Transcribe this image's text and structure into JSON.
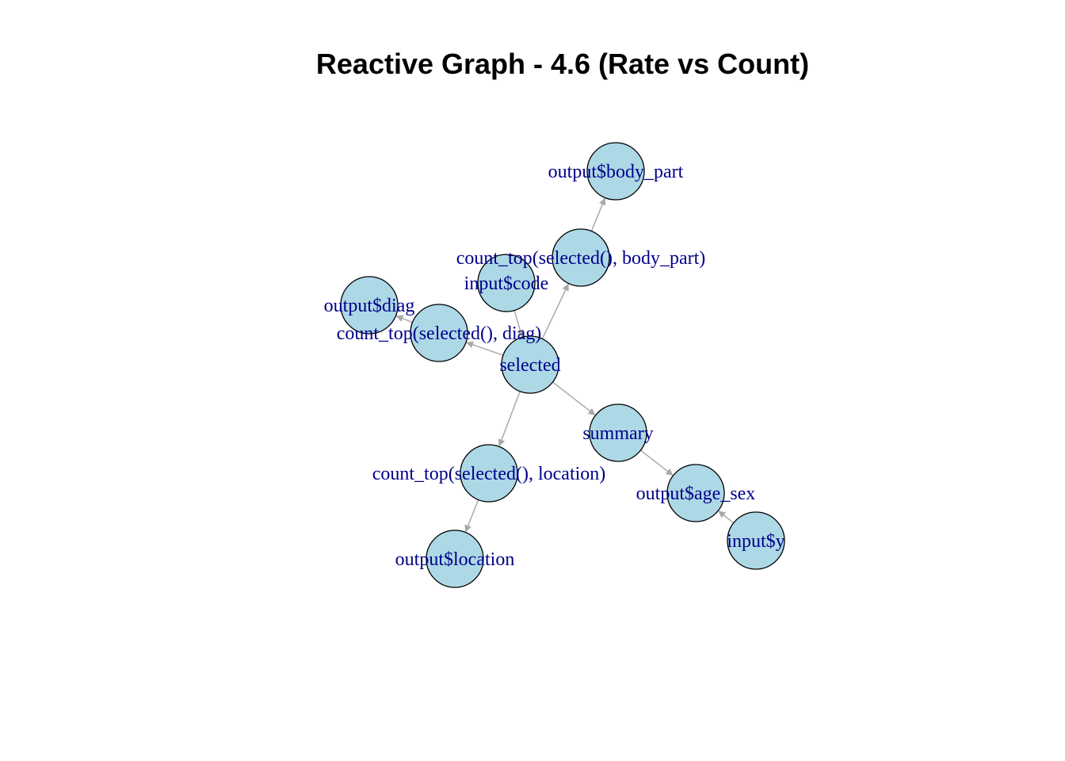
{
  "title": "Reactive Graph - 4.6 (Rate vs Count)",
  "colors": {
    "node_fill": "#add8e6",
    "node_stroke": "#000000",
    "edge": "#a9a9a9",
    "label": "#00008b"
  },
  "nodes": [
    {
      "id": "body_part_out",
      "label": "output$body_part"
    },
    {
      "id": "count_body",
      "label": "count_top(selected(), body_part)"
    },
    {
      "id": "input_code",
      "label": "input$code"
    },
    {
      "id": "diag_out",
      "label": "output$diag"
    },
    {
      "id": "count_diag",
      "label": "count_top(selected(), diag)"
    },
    {
      "id": "selected",
      "label": "selected"
    },
    {
      "id": "summary",
      "label": "summary"
    },
    {
      "id": "count_loc",
      "label": "count_top(selected(), location)"
    },
    {
      "id": "age_sex_out",
      "label": "output$age_sex"
    },
    {
      "id": "input_y",
      "label": "input$y"
    },
    {
      "id": "location_out",
      "label": "output$location"
    }
  ],
  "edges": [
    {
      "from": "input_code",
      "to": "selected"
    },
    {
      "from": "selected",
      "to": "count_body"
    },
    {
      "from": "count_body",
      "to": "body_part_out"
    },
    {
      "from": "selected",
      "to": "count_diag"
    },
    {
      "from": "count_diag",
      "to": "diag_out"
    },
    {
      "from": "selected",
      "to": "summary"
    },
    {
      "from": "summary",
      "to": "age_sex_out"
    },
    {
      "from": "input_y",
      "to": "age_sex_out"
    },
    {
      "from": "selected",
      "to": "count_loc"
    },
    {
      "from": "count_loc",
      "to": "location_out"
    }
  ]
}
